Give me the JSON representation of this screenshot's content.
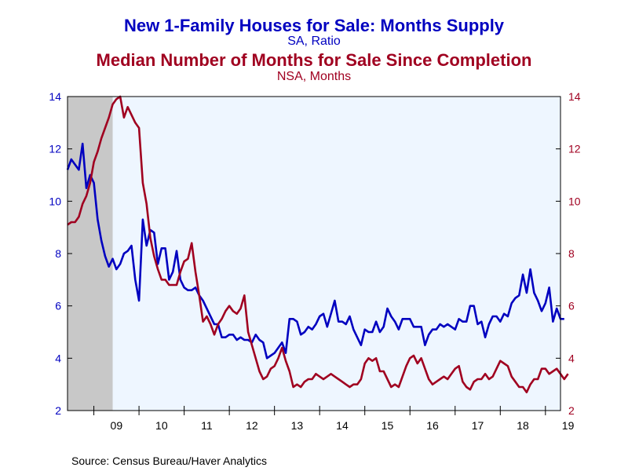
{
  "chart_data": {
    "type": "line",
    "titles": [
      {
        "text": "New 1-Family Houses for Sale: Months Supply",
        "color": "#0000c0"
      },
      {
        "text": "SA, Ratio",
        "color": "#0000c0"
      },
      {
        "text": "Median Number of Months for Sale Since Completion",
        "color": "#a00020"
      },
      {
        "text": "NSA, Months",
        "color": "#a00020"
      }
    ],
    "source": "Source:  Census Bureau/Haver Analytics",
    "x_ticks": [
      "09",
      "10",
      "11",
      "12",
      "13",
      "14",
      "15",
      "16",
      "17",
      "18",
      "19"
    ],
    "x_range": [
      "2008-06",
      "2019-05"
    ],
    "y_left": {
      "min": 2,
      "max": 14,
      "ticks": [
        "2",
        "4",
        "6",
        "8",
        "10",
        "12",
        "14"
      ],
      "color": "#0000c0"
    },
    "y_right": {
      "min": 2,
      "max": 14,
      "ticks": [
        "2",
        "4",
        "6",
        "8",
        "10",
        "12",
        "14"
      ],
      "color": "#a00020"
    },
    "recession": {
      "start": "2008-06",
      "end": "2009-06"
    },
    "colors": {
      "plot_bg": "#eef6ff",
      "recession": "#c8c8c8",
      "axis": "#000000"
    },
    "series": [
      {
        "axis": "left",
        "color": "#0000c0",
        "points": [
          [
            "2008-06",
            11.2
          ],
          [
            "2008-07",
            11.6
          ],
          [
            "2008-09",
            11.2
          ],
          [
            "2008-10",
            12.2
          ],
          [
            "2008-11",
            10.5
          ],
          [
            "2008-12",
            11.0
          ],
          [
            "2009-01",
            10.7
          ],
          [
            "2009-02",
            9.3
          ],
          [
            "2009-03",
            8.5
          ],
          [
            "2009-04",
            7.9
          ],
          [
            "2009-05",
            7.5
          ],
          [
            "2009-06",
            7.8
          ],
          [
            "2009-07",
            7.4
          ],
          [
            "2009-08",
            7.6
          ],
          [
            "2009-09",
            8.0
          ],
          [
            "2009-10",
            8.1
          ],
          [
            "2009-11",
            8.3
          ],
          [
            "2009-12",
            7.0
          ],
          [
            "2010-01",
            6.2
          ],
          [
            "2010-02",
            9.3
          ],
          [
            "2010-03",
            8.3
          ],
          [
            "2010-04",
            8.9
          ],
          [
            "2010-05",
            8.8
          ],
          [
            "2010-06",
            7.6
          ],
          [
            "2010-07",
            8.2
          ],
          [
            "2010-08",
            8.2
          ],
          [
            "2010-09",
            7.0
          ],
          [
            "2010-10",
            7.3
          ],
          [
            "2010-11",
            8.1
          ],
          [
            "2010-12",
            7.0
          ],
          [
            "2011-01",
            6.7
          ],
          [
            "2011-02",
            6.6
          ],
          [
            "2011-03",
            6.6
          ],
          [
            "2011-04",
            6.7
          ],
          [
            "2011-05",
            6.4
          ],
          [
            "2011-06",
            6.2
          ],
          [
            "2011-07",
            5.9
          ],
          [
            "2011-08",
            5.6
          ],
          [
            "2011-09",
            5.3
          ],
          [
            "2011-10",
            5.3
          ],
          [
            "2011-11",
            4.8
          ],
          [
            "2011-12",
            4.8
          ],
          [
            "2012-01",
            4.9
          ],
          [
            "2012-02",
            4.9
          ],
          [
            "2012-03",
            4.7
          ],
          [
            "2012-04",
            4.8
          ],
          [
            "2012-05",
            4.7
          ],
          [
            "2012-06",
            4.7
          ],
          [
            "2012-07",
            4.6
          ],
          [
            "2012-08",
            4.9
          ],
          [
            "2012-09",
            4.7
          ],
          [
            "2012-10",
            4.6
          ],
          [
            "2012-11",
            4.0
          ],
          [
            "2012-12",
            4.1
          ],
          [
            "2013-01",
            4.2
          ],
          [
            "2013-02",
            4.4
          ],
          [
            "2013-03",
            4.6
          ],
          [
            "2013-04",
            4.2
          ],
          [
            "2013-05",
            5.5
          ],
          [
            "2013-06",
            5.5
          ],
          [
            "2013-07",
            5.4
          ],
          [
            "2013-08",
            4.9
          ],
          [
            "2013-09",
            5.0
          ],
          [
            "2013-10",
            5.2
          ],
          [
            "2013-11",
            5.1
          ],
          [
            "2013-12",
            5.3
          ],
          [
            "2014-01",
            5.6
          ],
          [
            "2014-02",
            5.7
          ],
          [
            "2014-03",
            5.2
          ],
          [
            "2014-04",
            5.7
          ],
          [
            "2014-05",
            6.2
          ],
          [
            "2014-06",
            5.4
          ],
          [
            "2014-07",
            5.4
          ],
          [
            "2014-08",
            5.3
          ],
          [
            "2014-09",
            5.6
          ],
          [
            "2014-10",
            5.1
          ],
          [
            "2014-11",
            4.8
          ],
          [
            "2014-12",
            4.5
          ],
          [
            "2015-01",
            5.1
          ],
          [
            "2015-02",
            5.0
          ],
          [
            "2015-03",
            5.0
          ],
          [
            "2015-04",
            5.4
          ],
          [
            "2015-05",
            5.0
          ],
          [
            "2015-06",
            5.2
          ],
          [
            "2015-07",
            5.9
          ],
          [
            "2015-08",
            5.6
          ],
          [
            "2015-09",
            5.4
          ],
          [
            "2015-10",
            5.1
          ],
          [
            "2015-11",
            5.5
          ],
          [
            "2015-12",
            5.5
          ],
          [
            "2016-01",
            5.5
          ],
          [
            "2016-02",
            5.2
          ],
          [
            "2016-03",
            5.2
          ],
          [
            "2016-04",
            5.2
          ],
          [
            "2016-05",
            4.5
          ],
          [
            "2016-06",
            4.9
          ],
          [
            "2016-07",
            5.1
          ],
          [
            "2016-08",
            5.1
          ],
          [
            "2016-09",
            5.3
          ],
          [
            "2016-10",
            5.2
          ],
          [
            "2016-11",
            5.3
          ],
          [
            "2016-12",
            5.2
          ],
          [
            "2017-01",
            5.1
          ],
          [
            "2017-02",
            5.5
          ],
          [
            "2017-03",
            5.4
          ],
          [
            "2017-04",
            5.4
          ],
          [
            "2017-05",
            6.0
          ],
          [
            "2017-06",
            6.0
          ],
          [
            "2017-07",
            5.3
          ],
          [
            "2017-08",
            5.4
          ],
          [
            "2017-09",
            4.8
          ],
          [
            "2017-10",
            5.3
          ],
          [
            "2017-11",
            5.6
          ],
          [
            "2017-12",
            5.6
          ],
          [
            "2018-01",
            5.4
          ],
          [
            "2018-02",
            5.7
          ],
          [
            "2018-03",
            5.6
          ],
          [
            "2018-04",
            6.1
          ],
          [
            "2018-05",
            6.3
          ],
          [
            "2018-06",
            6.4
          ],
          [
            "2018-07",
            7.2
          ],
          [
            "2018-08",
            6.5
          ],
          [
            "2018-09",
            7.4
          ],
          [
            "2018-10",
            6.5
          ],
          [
            "2018-11",
            6.2
          ],
          [
            "2018-12",
            5.8
          ],
          [
            "2019-01",
            6.1
          ],
          [
            "2019-02",
            6.7
          ],
          [
            "2019-03",
            5.4
          ],
          [
            "2019-04",
            5.9
          ],
          [
            "2019-05",
            5.5
          ],
          [
            "2019-06",
            5.5
          ]
        ]
      },
      {
        "axis": "right",
        "color": "#a00020",
        "points": [
          [
            "2008-06",
            9.1
          ],
          [
            "2008-07",
            9.2
          ],
          [
            "2008-08",
            9.2
          ],
          [
            "2008-09",
            9.4
          ],
          [
            "2008-10",
            9.9
          ],
          [
            "2008-11",
            10.2
          ],
          [
            "2008-12",
            10.7
          ],
          [
            "2009-01",
            11.5
          ],
          [
            "2009-02",
            11.9
          ],
          [
            "2009-03",
            12.4
          ],
          [
            "2009-04",
            12.8
          ],
          [
            "2009-05",
            13.2
          ],
          [
            "2009-06",
            13.7
          ],
          [
            "2009-07",
            13.9
          ],
          [
            "2009-08",
            14.0
          ],
          [
            "2009-09",
            13.2
          ],
          [
            "2009-10",
            13.6
          ],
          [
            "2009-11",
            13.3
          ],
          [
            "2009-12",
            13.0
          ],
          [
            "2010-01",
            12.8
          ],
          [
            "2010-02",
            10.7
          ],
          [
            "2010-03",
            9.9
          ],
          [
            "2010-04",
            8.6
          ],
          [
            "2010-05",
            7.9
          ],
          [
            "2010-06",
            7.4
          ],
          [
            "2010-07",
            7.0
          ],
          [
            "2010-08",
            7.0
          ],
          [
            "2010-09",
            6.8
          ],
          [
            "2010-10",
            6.8
          ],
          [
            "2010-11",
            6.8
          ],
          [
            "2010-12",
            7.3
          ],
          [
            "2011-01",
            7.7
          ],
          [
            "2011-02",
            7.8
          ],
          [
            "2011-03",
            8.4
          ],
          [
            "2011-04",
            7.3
          ],
          [
            "2011-05",
            6.4
          ],
          [
            "2011-06",
            5.4
          ],
          [
            "2011-07",
            5.6
          ],
          [
            "2011-08",
            5.3
          ],
          [
            "2011-09",
            4.9
          ],
          [
            "2011-10",
            5.3
          ],
          [
            "2011-11",
            5.5
          ],
          [
            "2011-12",
            5.8
          ],
          [
            "2012-01",
            6.0
          ],
          [
            "2012-02",
            5.8
          ],
          [
            "2012-03",
            5.7
          ],
          [
            "2012-04",
            5.9
          ],
          [
            "2012-05",
            6.4
          ],
          [
            "2012-06",
            5.0
          ],
          [
            "2012-07",
            4.5
          ],
          [
            "2012-08",
            4.0
          ],
          [
            "2012-09",
            3.5
          ],
          [
            "2012-10",
            3.2
          ],
          [
            "2012-11",
            3.3
          ],
          [
            "2012-12",
            3.6
          ],
          [
            "2013-01",
            3.7
          ],
          [
            "2013-02",
            4.0
          ],
          [
            "2013-03",
            4.4
          ],
          [
            "2013-04",
            3.9
          ],
          [
            "2013-05",
            3.5
          ],
          [
            "2013-06",
            2.9
          ],
          [
            "2013-07",
            3.0
          ],
          [
            "2013-08",
            2.9
          ],
          [
            "2013-09",
            3.1
          ],
          [
            "2013-10",
            3.2
          ],
          [
            "2013-11",
            3.2
          ],
          [
            "2013-12",
            3.4
          ],
          [
            "2014-01",
            3.3
          ],
          [
            "2014-02",
            3.2
          ],
          [
            "2014-03",
            3.3
          ],
          [
            "2014-04",
            3.4
          ],
          [
            "2014-05",
            3.3
          ],
          [
            "2014-06",
            3.2
          ],
          [
            "2014-07",
            3.1
          ],
          [
            "2014-08",
            3.0
          ],
          [
            "2014-09",
            2.9
          ],
          [
            "2014-10",
            3.0
          ],
          [
            "2014-11",
            3.0
          ],
          [
            "2014-12",
            3.2
          ],
          [
            "2015-01",
            3.8
          ],
          [
            "2015-02",
            4.0
          ],
          [
            "2015-03",
            3.9
          ],
          [
            "2015-04",
            4.0
          ],
          [
            "2015-05",
            3.5
          ],
          [
            "2015-06",
            3.5
          ],
          [
            "2015-07",
            3.2
          ],
          [
            "2015-08",
            2.9
          ],
          [
            "2015-09",
            3.0
          ],
          [
            "2015-10",
            2.9
          ],
          [
            "2015-11",
            3.3
          ],
          [
            "2015-12",
            3.7
          ],
          [
            "2016-01",
            4.0
          ],
          [
            "2016-02",
            4.1
          ],
          [
            "2016-03",
            3.8
          ],
          [
            "2016-04",
            4.0
          ],
          [
            "2016-05",
            3.6
          ],
          [
            "2016-06",
            3.2
          ],
          [
            "2016-07",
            3.0
          ],
          [
            "2016-08",
            3.1
          ],
          [
            "2016-09",
            3.2
          ],
          [
            "2016-10",
            3.3
          ],
          [
            "2016-11",
            3.2
          ],
          [
            "2016-12",
            3.4
          ],
          [
            "2017-01",
            3.6
          ],
          [
            "2017-02",
            3.7
          ],
          [
            "2017-03",
            3.1
          ],
          [
            "2017-04",
            2.9
          ],
          [
            "2017-05",
            2.8
          ],
          [
            "2017-06",
            3.1
          ],
          [
            "2017-07",
            3.2
          ],
          [
            "2017-08",
            3.2
          ],
          [
            "2017-09",
            3.4
          ],
          [
            "2017-10",
            3.2
          ],
          [
            "2017-11",
            3.3
          ],
          [
            "2017-12",
            3.6
          ],
          [
            "2018-01",
            3.9
          ],
          [
            "2018-02",
            3.8
          ],
          [
            "2018-03",
            3.7
          ],
          [
            "2018-04",
            3.3
          ],
          [
            "2018-05",
            3.1
          ],
          [
            "2018-06",
            2.9
          ],
          [
            "2018-07",
            2.9
          ],
          [
            "2018-08",
            2.7
          ],
          [
            "2018-09",
            3.0
          ],
          [
            "2018-10",
            3.2
          ],
          [
            "2018-11",
            3.2
          ],
          [
            "2018-12",
            3.6
          ],
          [
            "2019-01",
            3.6
          ],
          [
            "2019-02",
            3.4
          ],
          [
            "2019-03",
            3.5
          ],
          [
            "2019-04",
            3.6
          ],
          [
            "2019-05",
            3.4
          ],
          [
            "2019-06",
            3.2
          ],
          [
            "2019-07",
            3.4
          ]
        ]
      }
    ]
  }
}
